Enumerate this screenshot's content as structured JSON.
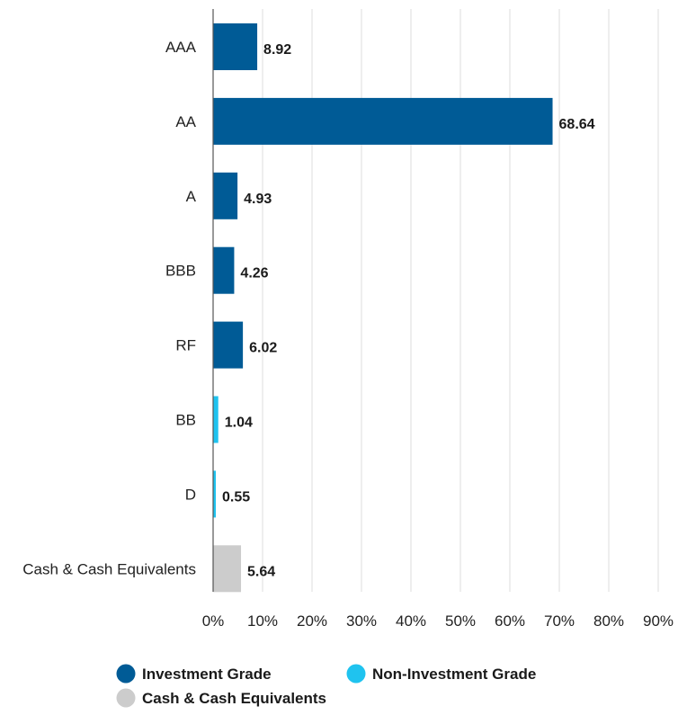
{
  "chart_data": {
    "type": "bar",
    "orientation": "horizontal",
    "categories": [
      "AAA",
      "AA",
      "A",
      "BBB",
      "RF",
      "BB",
      "D",
      "Cash & Cash Equivalents"
    ],
    "values": [
      8.92,
      68.64,
      4.93,
      4.26,
      6.02,
      1.04,
      0.55,
      5.64
    ],
    "value_labels": [
      "8.92",
      "68.64",
      "4.93",
      "4.26",
      "6.02",
      "1.04",
      "0.55",
      "5.64"
    ],
    "groups": [
      "Investment Grade",
      "Investment Grade",
      "Investment Grade",
      "Investment Grade",
      "Investment Grade",
      "Non-Investment Grade",
      "Non-Investment Grade",
      "Cash & Cash Equivalents"
    ],
    "xlim": [
      0,
      90
    ],
    "xticks": [
      "0%",
      "10%",
      "20%",
      "30%",
      "40%",
      "50%",
      "60%",
      "70%",
      "80%",
      "90%"
    ],
    "grid": true,
    "legend_position": "bottom",
    "legend": [
      {
        "name": "Investment Grade",
        "color": "#005b96"
      },
      {
        "name": "Non-Investment Grade",
        "color": "#1fc3ef"
      },
      {
        "name": "Cash & Cash Equivalents",
        "color": "#cccccc"
      }
    ],
    "title": "",
    "xlabel": "",
    "ylabel": ""
  }
}
